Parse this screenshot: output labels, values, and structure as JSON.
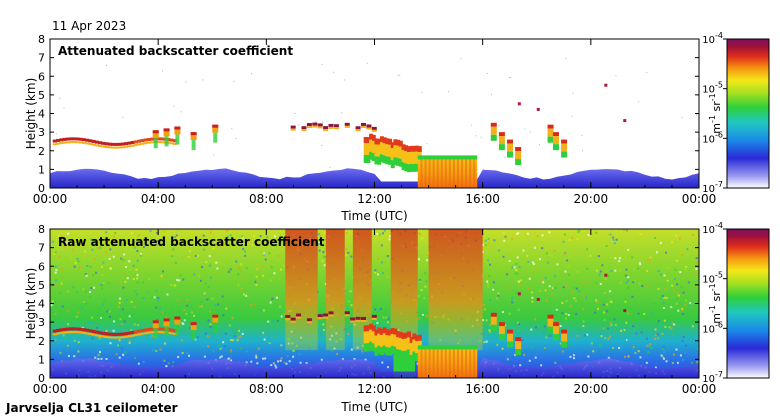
{
  "date": "11 Apr 2023",
  "footer": "Jarvselja CL31 ceilometer",
  "chart_data": [
    {
      "type": "heatmap",
      "title": "Attenuated backscatter coefficient",
      "xlabel": "Time (UTC)",
      "ylabel": "Height (km)",
      "xticks": [
        "00:00",
        "04:00",
        "08:00",
        "12:00",
        "16:00",
        "20:00",
        "00:00"
      ],
      "yticks": [
        "0",
        "1",
        "2",
        "3",
        "4",
        "5",
        "6",
        "7",
        "8"
      ],
      "xlim_hours": [
        0,
        24
      ],
      "ylim_km": [
        0,
        8
      ],
      "colorbar": {
        "label_base": "m",
        "label_exp1": "-1",
        "label_mid": " sr",
        "label_exp2": "-1",
        "scale": "log",
        "ticks": [
          {
            "base": "10",
            "exp": "-4"
          },
          {
            "base": "10",
            "exp": "-5"
          },
          {
            "base": "10",
            "exp": "-6"
          },
          {
            "base": "10",
            "exp": "-7"
          }
        ]
      },
      "features": [
        {
          "name": "cloud layer",
          "start_h": 0.1,
          "end_h": 4.6,
          "height_km": 2.5
        },
        {
          "name": "cloud tops",
          "start_h": 8.7,
          "end_h": 12.0,
          "height_km": 3.3
        },
        {
          "name": "precipitation",
          "start_h": 13.6,
          "end_h": 15.8,
          "height_km": 0
        }
      ]
    },
    {
      "type": "heatmap",
      "title": "Raw attenuated backscatter coefficient",
      "xlabel": "Time (UTC)",
      "ylabel": "Height (km)",
      "xticks": [
        "00:00",
        "04:00",
        "08:00",
        "12:00",
        "16:00",
        "20:00",
        "00:00"
      ],
      "yticks": [
        "0",
        "1",
        "2",
        "3",
        "4",
        "5",
        "6",
        "7",
        "8"
      ],
      "xlim_hours": [
        0,
        24
      ],
      "ylim_km": [
        0,
        8
      ],
      "colorbar": {
        "label_base": "m",
        "label_exp1": "-1",
        "label_mid": " sr",
        "label_exp2": "-1",
        "scale": "log",
        "ticks": [
          {
            "base": "10",
            "exp": "-4"
          },
          {
            "base": "10",
            "exp": "-5"
          },
          {
            "base": "10",
            "exp": "-6"
          },
          {
            "base": "10",
            "exp": "-7"
          }
        ]
      }
    }
  ]
}
